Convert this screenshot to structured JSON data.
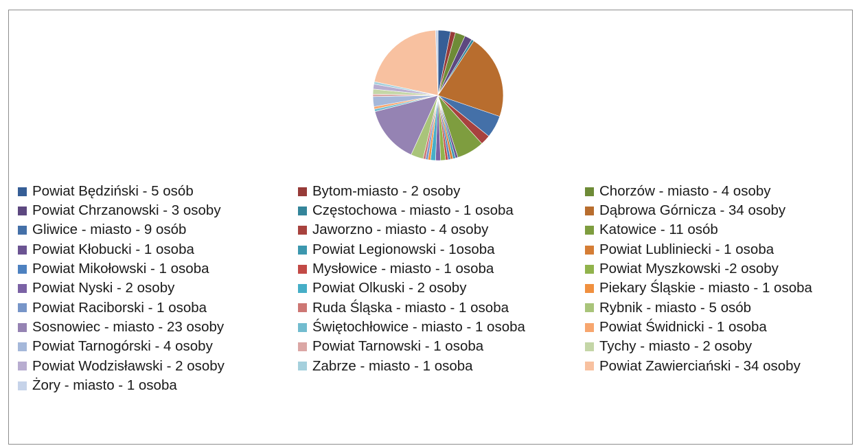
{
  "chart_data": {
    "type": "pie",
    "title": "",
    "legend_position": "bottom",
    "slices": [
      {
        "label": "Powiat Będziński - 5 osób",
        "value": 5,
        "color": "#365e96"
      },
      {
        "label": "Bytom-miasto - 2 osoby",
        "value": 2,
        "color": "#973b38"
      },
      {
        "label": "Chorzów - miasto - 4 osoby",
        "value": 4,
        "color": "#6e8b37"
      },
      {
        "label": "Powiat Chrzanowski - 3 osoby",
        "value": 3,
        "color": "#5d4880"
      },
      {
        "label": "Częstochowa - miasto - 1 osoba",
        "value": 1,
        "color": "#34859a"
      },
      {
        "label": "Dąbrowa Górnicza - 34 osoby",
        "value": 34,
        "color": "#b86d2e"
      },
      {
        "label": "Gliwice - miasto - 9 osób",
        "value": 9,
        "color": "#4470a8"
      },
      {
        "label": "Jaworzno - miasto - 4 osoby",
        "value": 4,
        "color": "#a8423e"
      },
      {
        "label": "Katowice - 11 osób",
        "value": 11,
        "color": "#7e9d3f"
      },
      {
        "label": "Powiat Kłobucki - 1 osoba",
        "value": 1,
        "color": "#6b5492"
      },
      {
        "label": "Powiat Legionowski - 1osoba",
        "value": 1,
        "color": "#3c97ae"
      },
      {
        "label": "Powiat Lubliniecki - 1 osoba",
        "value": 1,
        "color": "#d57d35"
      },
      {
        "label": "Powiat Mikołowski - 1 osoba",
        "value": 1,
        "color": "#4d81c0"
      },
      {
        "label": "Mysłowice - miasto - 1 osoba",
        "value": 1,
        "color": "#c24a46"
      },
      {
        "label": "Powiat Myszkowski -2 osoby",
        "value": 2,
        "color": "#91b34c"
      },
      {
        "label": "Powiat Nyski - 2 osoby",
        "value": 2,
        "color": "#7b62a5"
      },
      {
        "label": "Powiat Olkuski - 2 osoby",
        "value": 2,
        "color": "#46aec7"
      },
      {
        "label": "Piekary Śląskie - miasto - 1 osoba",
        "value": 1,
        "color": "#f0903f"
      },
      {
        "label": "Powiat Raciborski - 1 osoba",
        "value": 1,
        "color": "#7795c8"
      },
      {
        "label": "Ruda Śląska - miasto - 1 osoba",
        "value": 1,
        "color": "#cd7774"
      },
      {
        "label": "Rybnik - miasto - 5 osób",
        "value": 5,
        "color": "#a9c47a"
      },
      {
        "label": "Sosnowiec - miasto - 23 osoby",
        "value": 23,
        "color": "#9583b3"
      },
      {
        "label": "Świętochłowice - miasto - 1 osoba",
        "value": 1,
        "color": "#72bccf"
      },
      {
        "label": "Powiat Świdnicki - 1 osoba",
        "value": 1,
        "color": "#f7a66e"
      },
      {
        "label": "Powiat Tarnogórski - 4 osoby",
        "value": 4,
        "color": "#a5b8da"
      },
      {
        "label": "Powiat Tarnowski - 1 osoba",
        "value": 1,
        "color": "#dba7a5"
      },
      {
        "label": "Tychy - miasto - 2 osoby",
        "value": 2,
        "color": "#c4d6a7"
      },
      {
        "label": "Powiat Wodzisławski - 2 osoby",
        "value": 2,
        "color": "#b8add0"
      },
      {
        "label": "Zabrze - miasto - 1 osoba",
        "value": 1,
        "color": "#a5d0dd"
      },
      {
        "label": "Powiat Zawierciański - 34 osoby",
        "value": 34,
        "color": "#f8c1a0"
      },
      {
        "label": "Żory - miasto - 1 osoba",
        "value": 1,
        "color": "#c6d3e9"
      }
    ]
  }
}
